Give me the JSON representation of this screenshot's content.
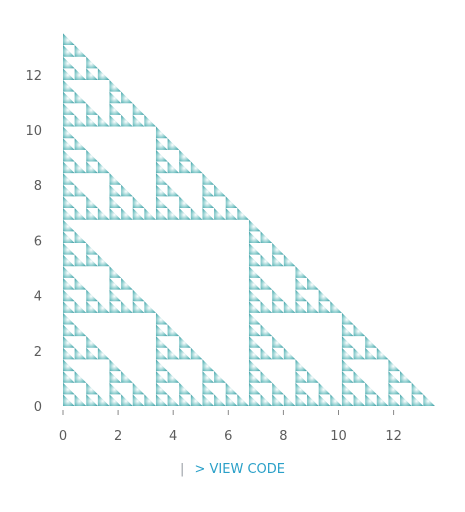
{
  "chart_data": {
    "type": "sierpinski-triangle",
    "xlim": [
      0,
      13.5
    ],
    "ylim": [
      0,
      13.5
    ],
    "x_ticks": [
      0,
      2,
      4,
      6,
      8,
      10,
      12
    ],
    "y_ticks": [
      0,
      2,
      4,
      6,
      8,
      10,
      12
    ],
    "triangle": {
      "size": 13.5,
      "levels": 5
    },
    "colors": {
      "edge": "#2b8f98",
      "mid": "#7fc7c8",
      "center": "#ffffff",
      "tick": "#5c5c5c"
    }
  },
  "footer": {
    "separator": "|",
    "view_code_label": "> VIEW CODE"
  }
}
